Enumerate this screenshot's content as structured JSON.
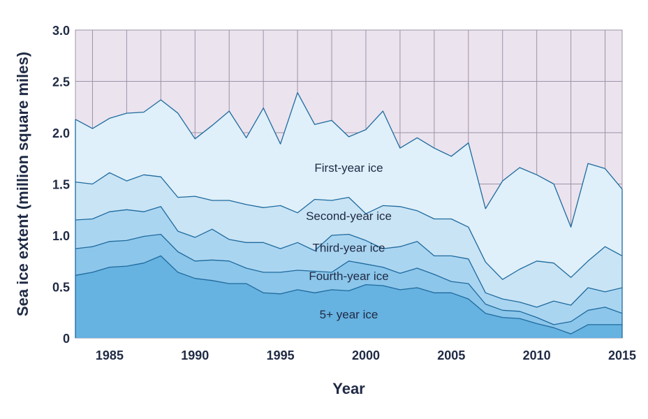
{
  "chart_data": {
    "type": "area",
    "xlabel": "Year",
    "ylabel": "Sea ice extent (million square miles)",
    "xlim": [
      1983,
      2015
    ],
    "ylim": [
      0,
      3
    ],
    "x_ticks": [
      "1985",
      "1990",
      "1995",
      "2000",
      "2005",
      "2010",
      "2015"
    ],
    "y_ticks": [
      "0",
      "0.5",
      "1.0",
      "1.5",
      "2.0",
      "2.5",
      "3.0"
    ],
    "grid": true,
    "stacked": true,
    "x": [
      1983,
      1984,
      1985,
      1986,
      1987,
      1988,
      1989,
      1990,
      1991,
      1992,
      1993,
      1994,
      1995,
      1996,
      1997,
      1998,
      1999,
      2000,
      2001,
      2002,
      2003,
      2004,
      2005,
      2006,
      2007,
      2008,
      2009,
      2010,
      2011,
      2012,
      2013,
      2014,
      2015
    ],
    "series": [
      {
        "name": "5+ year ice",
        "color": "#66b2e0",
        "values": [
          0.61,
          0.64,
          0.69,
          0.7,
          0.73,
          0.8,
          0.64,
          0.58,
          0.56,
          0.53,
          0.53,
          0.44,
          0.43,
          0.47,
          0.44,
          0.47,
          0.46,
          0.52,
          0.51,
          0.47,
          0.49,
          0.44,
          0.44,
          0.38,
          0.24,
          0.2,
          0.19,
          0.14,
          0.1,
          0.04,
          0.13,
          0.13,
          0.13
        ]
      },
      {
        "name": "Fourth-year ice",
        "color": "#8cc6ea",
        "values": [
          0.26,
          0.25,
          0.25,
          0.25,
          0.26,
          0.21,
          0.2,
          0.17,
          0.2,
          0.22,
          0.15,
          0.2,
          0.21,
          0.19,
          0.21,
          0.17,
          0.29,
          0.2,
          0.18,
          0.16,
          0.19,
          0.18,
          0.11,
          0.15,
          0.09,
          0.07,
          0.07,
          0.06,
          0.03,
          0.12,
          0.14,
          0.17,
          0.11
        ]
      },
      {
        "name": "Third-year ice",
        "color": "#aad5f1",
        "values": [
          0.28,
          0.27,
          0.29,
          0.3,
          0.24,
          0.27,
          0.2,
          0.23,
          0.3,
          0.21,
          0.25,
          0.29,
          0.23,
          0.27,
          0.2,
          0.36,
          0.26,
          0.23,
          0.18,
          0.26,
          0.26,
          0.18,
          0.25,
          0.24,
          0.11,
          0.11,
          0.09,
          0.1,
          0.23,
          0.16,
          0.22,
          0.15,
          0.25
        ]
      },
      {
        "name": "Second-year ice",
        "color": "#c9e4f5",
        "values": [
          0.37,
          0.34,
          0.38,
          0.28,
          0.36,
          0.29,
          0.33,
          0.4,
          0.28,
          0.38,
          0.37,
          0.34,
          0.42,
          0.29,
          0.5,
          0.34,
          0.36,
          0.26,
          0.42,
          0.39,
          0.3,
          0.36,
          0.36,
          0.31,
          0.3,
          0.19,
          0.32,
          0.45,
          0.37,
          0.27,
          0.26,
          0.44,
          0.31
        ]
      },
      {
        "name": "First-year ice",
        "color": "#dff0fa",
        "values": [
          0.61,
          0.54,
          0.53,
          0.66,
          0.61,
          0.75,
          0.82,
          0.56,
          0.73,
          0.87,
          0.65,
          0.97,
          0.6,
          1.17,
          0.73,
          0.78,
          0.59,
          0.82,
          0.92,
          0.57,
          0.71,
          0.69,
          0.61,
          0.82,
          0.52,
          0.96,
          0.99,
          0.84,
          0.77,
          0.49,
          0.95,
          0.76,
          0.65
        ]
      }
    ],
    "area_labels": {
      "first": "First-year ice",
      "second": "Second-year ice",
      "third": "Third-year ice",
      "fourth": "Fourth-year ice",
      "fifth": "5+ year ice"
    },
    "colors": {
      "background": "#ebe3ee",
      "grid": "#9e93a7",
      "line": "#1e6a9e",
      "text": "#1f2a44"
    }
  }
}
